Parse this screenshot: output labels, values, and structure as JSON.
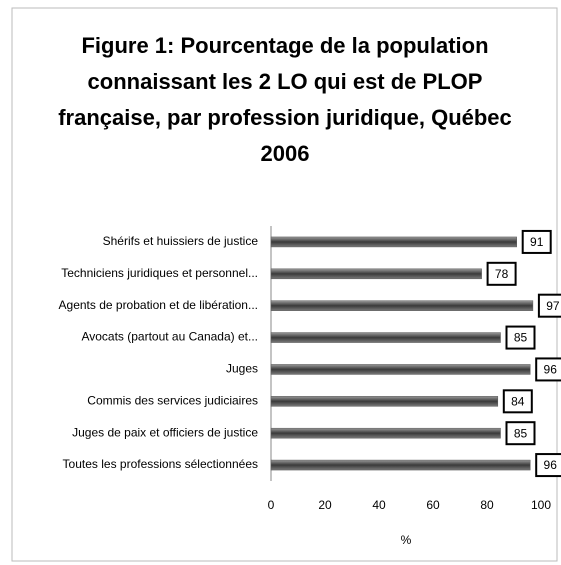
{
  "chart_data": {
    "type": "bar",
    "orientation": "horizontal",
    "title": "Figure 1: Pourcentage de la population connaissant les 2 LO qui est de PLOP française, par profession juridique, Québec 2006",
    "categories": [
      "Shérifs et huissiers de justice",
      "Techniciens juridiques et personnel...",
      "Agents de probation et de libération...",
      "Avocats (partout au Canada) et...",
      "Juges",
      "Commis des services judiciaires",
      "Juges de paix et officiers de justice",
      "Toutes les professions sélectionnées"
    ],
    "values": [
      91,
      78,
      97,
      85,
      96,
      84,
      85,
      96
    ],
    "color": "#595959",
    "xlim": [
      0,
      100
    ],
    "xticks": [
      0,
      20,
      40,
      60,
      80,
      100
    ],
    "x_label": "%"
  }
}
